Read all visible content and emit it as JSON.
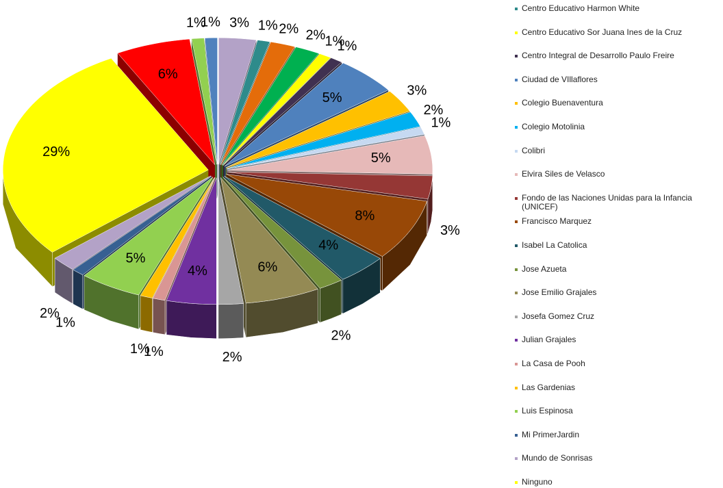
{
  "chart_data": {
    "type": "pie3d",
    "categories": [
      null,
      "Centro Educativo Harmon White",
      null,
      null,
      "Centro Educativo Sor Juana Ines de la Cruz",
      "Centro Integral de Desarrollo Paulo Freire",
      "Ciudad de VIllaflores",
      "Colegio Buenaventura",
      "Colegio Motolinia",
      "Colibri",
      "Elvira Siles de Velasco",
      "Fondo de las Naciones Unidas para la Infancia (UNICEF)",
      "Francisco Marquez",
      "Isabel La Catolica",
      "Jose Azueta",
      "Jose Emilio Grajales",
      "Josefa Gomez Cruz",
      "Julian Grajales",
      "La Casa de Pooh",
      "Las Gardenias",
      "Luis Espinosa",
      "Mi PrimerJardin",
      "Mundo de Sonrisas",
      "Ninguno",
      null,
      null,
      null
    ],
    "values": [
      3,
      1,
      2,
      2,
      1,
      1,
      5,
      3,
      2,
      1,
      5,
      3,
      8,
      4,
      2,
      6,
      2,
      4,
      1,
      1,
      5,
      1,
      2,
      29,
      6,
      1,
      1
    ],
    "value_labels": [
      "3%",
      "1%",
      "2%",
      "2%",
      "1%",
      "1%",
      "5%",
      "3%",
      "2%",
      "1%",
      "5%",
      "3%",
      "8%",
      "4%",
      "2%",
      "6%",
      "2%",
      "4%",
      "1%",
      "1%",
      "5%",
      "1%",
      "2%",
      "29%",
      "6%",
      "1%",
      "1%"
    ],
    "colors": [
      "#b3a2c7",
      "#2e8b8b",
      "#e46c0a",
      "#00b050",
      "#ffff00",
      "#403151",
      "#4f81bd",
      "#ffc000",
      "#00b0f0",
      "#c6d9f1",
      "#e6b9b8",
      "#953735",
      "#984807",
      "#215968",
      "#77933c",
      "#948a54",
      "#a6a6a6",
      "#7030a0",
      "#d99694",
      "#ffc000",
      "#92d050",
      "#376092",
      "#b3a2c7",
      "#ffff00",
      "#ff0000",
      "#92d050",
      "#4f81bd"
    ]
  }
}
